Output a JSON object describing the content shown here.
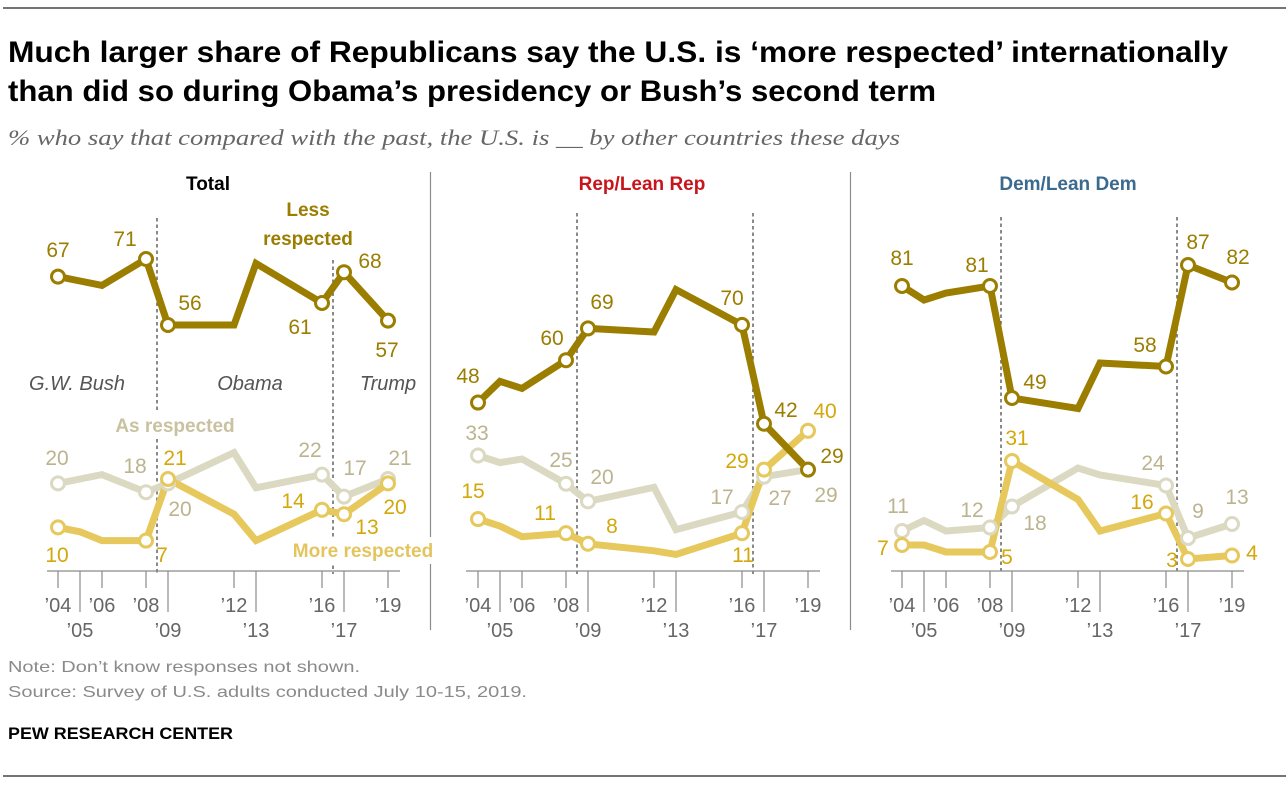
{
  "header": {
    "title_line1": "Much larger share of Republicans say the U.S. is ‘more respected’ internationally",
    "title_line2": "than did so during Obama’s presidency or Bush’s second term",
    "subtitle": "% who say that compared with the past, the U.S. is __ by other countries these days"
  },
  "footer": {
    "note": "Note: Don’t know responses not shown.",
    "source": "Source: Survey of U.S. adults conducted July 10-15, 2019.",
    "brand": "PEW RESEARCH CENTER"
  },
  "chart_data": [
    {
      "type": "line",
      "title": "Total",
      "title_color": "#000000",
      "x": [
        2004,
        2005,
        2006,
        2008,
        2009,
        2012,
        2013,
        2016,
        2017,
        2019
      ],
      "xtick_labels": [
        "’04",
        "’05",
        "’06",
        "’08",
        "’09",
        "’12",
        "’13",
        "’16",
        "’17",
        "’19"
      ],
      "xlabel": "",
      "ylabel": "%",
      "grid": false,
      "labeled_points": [
        2004,
        2008,
        2009,
        2016,
        2017,
        2019
      ],
      "era_breaks": [
        2008.5,
        2016.5
      ],
      "eras": [
        "G.W. Bush",
        "Obama",
        "Trump"
      ],
      "series": [
        {
          "name": "Less respected",
          "color": "#9b7d00",
          "label_color": "#9b7d00",
          "annotation": [
            "Less",
            "respected"
          ],
          "annotation_color": "#9b7d00",
          "values": [
            67,
            66,
            65,
            71,
            56,
            56,
            70,
            61,
            68,
            57
          ]
        },
        {
          "name": "As respected",
          "color": "#dcd9c3",
          "label_color": "#bcb48f",
          "annotation": [
            "As respected"
          ],
          "annotation_color": "#c9c2a0",
          "values": [
            20,
            21,
            22,
            18,
            20,
            27,
            19,
            22,
            17,
            21
          ]
        },
        {
          "name": "More respected",
          "color": "#e6c85c",
          "label_color": "#d4a70a",
          "annotation": [
            "More respected"
          ],
          "annotation_color": "#e3c45e",
          "values": [
            10,
            9,
            7,
            7,
            21,
            13,
            7,
            14,
            13,
            20
          ]
        }
      ]
    },
    {
      "type": "line",
      "title": "Rep/Lean Rep",
      "title_color": "#c8151b",
      "x": [
        2004,
        2005,
        2006,
        2008,
        2009,
        2012,
        2013,
        2016,
        2017,
        2019
      ],
      "xtick_labels": [
        "’04",
        "’05",
        "’06",
        "’08",
        "’09",
        "’12",
        "’13",
        "’16",
        "’17",
        "’19"
      ],
      "xlabel": "",
      "ylabel": "%",
      "grid": false,
      "labeled_points": [
        2004,
        2008,
        2009,
        2016,
        2017,
        2019
      ],
      "era_breaks": [
        2008.5,
        2016.5
      ],
      "series": [
        {
          "name": "Less respected",
          "color": "#9b7d00",
          "label_color": "#9b7d00",
          "values": [
            48,
            54,
            52,
            60,
            69,
            68,
            80,
            70,
            42,
            29
          ]
        },
        {
          "name": "As respected",
          "color": "#dcd9c3",
          "label_color": "#bcb48f",
          "values": [
            33,
            31,
            32,
            25,
            20,
            24,
            12,
            17,
            27,
            29
          ]
        },
        {
          "name": "More respected",
          "color": "#e6c85c",
          "label_color": "#d4a70a",
          "values": [
            15,
            13,
            10,
            11,
            8,
            6,
            5,
            11,
            29,
            40
          ]
        }
      ]
    },
    {
      "type": "line",
      "title": "Dem/Lean Dem",
      "title_color": "#3b6a8e",
      "x": [
        2004,
        2005,
        2006,
        2008,
        2009,
        2012,
        2013,
        2016,
        2017,
        2019
      ],
      "xtick_labels": [
        "’04",
        "’05",
        "’06",
        "’08",
        "’09",
        "’12",
        "’13",
        "’16",
        "’17",
        "’19"
      ],
      "xlabel": "",
      "ylabel": "%",
      "grid": false,
      "labeled_points": [
        2004,
        2008,
        2009,
        2016,
        2017,
        2019
      ],
      "era_breaks": [
        2008.5,
        2016.5
      ],
      "series": [
        {
          "name": "Less respected",
          "color": "#9b7d00",
          "label_color": "#9b7d00",
          "values": [
            81,
            77,
            79,
            81,
            49,
            46,
            59,
            58,
            87,
            82
          ]
        },
        {
          "name": "As respected",
          "color": "#dcd9c3",
          "label_color": "#bcb48f",
          "values": [
            11,
            14,
            11,
            12,
            18,
            29,
            27,
            24,
            9,
            13
          ]
        },
        {
          "name": "More respected",
          "color": "#e6c85c",
          "label_color": "#d4a70a",
          "values": [
            7,
            7,
            5,
            5,
            31,
            20,
            11,
            16,
            3,
            4
          ]
        }
      ]
    }
  ]
}
